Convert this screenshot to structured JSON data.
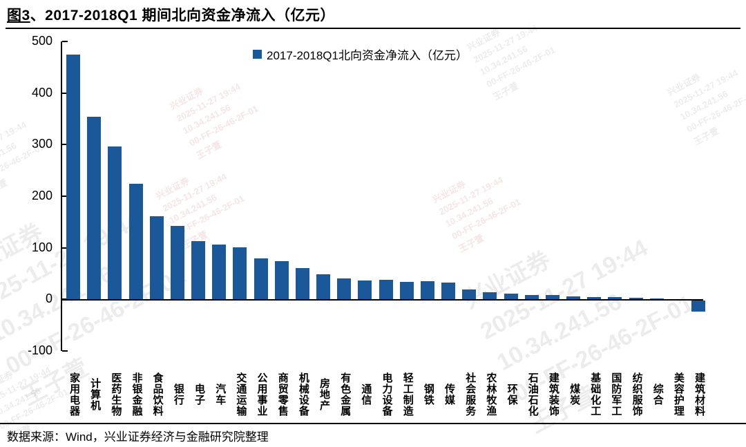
{
  "title": {
    "fig_no": "图3",
    "rest": "、2017-2018Q1 期间北向资金净流入（亿元）"
  },
  "legend": {
    "label": "2017-2018Q1北向资金净流入（亿元）"
  },
  "footer": {
    "text": "数据来源：Wind，兴业证券经济与金融研究院整理"
  },
  "colors": {
    "bar": "#1B5899",
    "axis": "#000000"
  },
  "watermark": {
    "lines": [
      "兴业证券",
      "2025-11-27 19:44",
      "10.34.241.56",
      "00-FF-26-46-2F-01",
      "王子萱"
    ]
  },
  "chart_data": {
    "type": "bar",
    "title": "2017-2018Q1北向资金净流入（亿元）",
    "xlabel": "",
    "ylabel": "亿元",
    "ylim": [
      -100,
      500
    ],
    "yticks": [
      500,
      400,
      300,
      200,
      100,
      0,
      -100
    ],
    "grid": false,
    "legend_position": "top-center",
    "bar_color": "#1B5899",
    "categories": [
      "家用电器",
      "计算机",
      "医药生物",
      "非银金融",
      "食品饮料",
      "银行",
      "电子",
      "汽车",
      "交通运输",
      "公用事业",
      "商贸零售",
      "机械设备",
      "房地产",
      "有色金属",
      "通信",
      "电力设备",
      "轻工制造",
      "钢铁",
      "传媒",
      "社会服务",
      "农林牧渔",
      "环保",
      "石油石化",
      "建筑装饰",
      "煤炭",
      "基础化工",
      "国防军工",
      "纺织服饰",
      "综合",
      "美容护理",
      "建筑材料"
    ],
    "values": [
      475,
      354,
      297,
      224,
      161,
      142,
      113,
      106,
      101,
      80,
      74,
      61,
      49,
      41,
      37,
      38,
      34,
      35,
      32,
      19,
      14,
      11,
      9,
      8,
      6,
      5,
      4,
      3,
      1.5,
      0.5,
      -21
    ]
  }
}
